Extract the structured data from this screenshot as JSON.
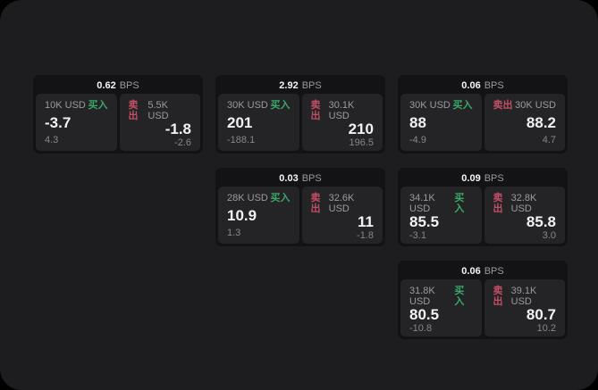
{
  "labels": {
    "bps": "BPS",
    "buy": "买入",
    "sell": "卖出"
  },
  "colors": {
    "background": "#000000",
    "surface": "#1d1d1f",
    "card": "#131315",
    "tile": "#242427",
    "buy_accent": "#3aa868",
    "sell_accent": "#c44f66",
    "text_primary": "#f2f2f4",
    "text_secondary": "#9b9b9e"
  },
  "cards": [
    {
      "bps": "0.62",
      "buy": {
        "amount": "10K USD",
        "value": "-3.7",
        "sub": "4.3"
      },
      "sell": {
        "amount": "5.5K USD",
        "value": "-1.8",
        "sub": "-2.6"
      }
    },
    {
      "bps": "2.92",
      "buy": {
        "amount": "30K USD",
        "value": "201",
        "sub": "-188.1"
      },
      "sell": {
        "amount": "30.1K USD",
        "value": "210",
        "sub": "196.5"
      }
    },
    {
      "bps": "0.06",
      "buy": {
        "amount": "30K USD",
        "value": "88",
        "sub": "-4.9"
      },
      "sell": {
        "amount": "30K USD",
        "value": "88.2",
        "sub": "4.7"
      }
    },
    {
      "bps": "0.03",
      "buy": {
        "amount": "28K USD",
        "value": "10.9",
        "sub": "1.3"
      },
      "sell": {
        "amount": "32.6K USD",
        "value": "11",
        "sub": "-1.8"
      }
    },
    {
      "bps": "0.09",
      "buy": {
        "amount": "34.1K USD",
        "value": "85.5",
        "sub": "-3.1"
      },
      "sell": {
        "amount": "32.8K USD",
        "value": "85.8",
        "sub": "3.0"
      }
    },
    {
      "bps": "0.06",
      "buy": {
        "amount": "31.8K USD",
        "value": "80.5",
        "sub": "-10.8"
      },
      "sell": {
        "amount": "39.1K USD",
        "value": "80.7",
        "sub": "10.2"
      }
    }
  ]
}
